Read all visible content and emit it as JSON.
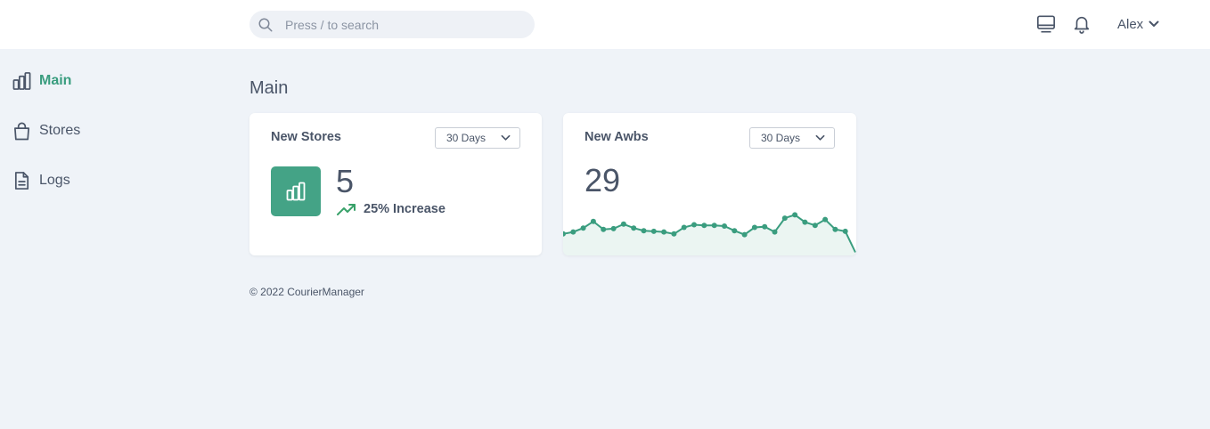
{
  "header": {
    "search_placeholder": "Press / to search",
    "icons": [
      "search-icon",
      "monitor-icon",
      "bell-icon"
    ],
    "user": {
      "name": "Alex"
    }
  },
  "sidebar": {
    "items": [
      {
        "label": "Main",
        "icon": "bar-chart-icon",
        "active": true
      },
      {
        "label": "Stores",
        "icon": "shopping-bag-icon",
        "active": false
      },
      {
        "label": "Logs",
        "icon": "document-icon",
        "active": false
      }
    ]
  },
  "main": {
    "title": "Main",
    "cards": [
      {
        "title": "New Stores",
        "period": "30 Days",
        "value": "5",
        "trend_label": "25% Increase",
        "icon": "bar-chart-icon"
      },
      {
        "title": "New Awbs",
        "period": "30 Days",
        "value": "29"
      }
    ]
  },
  "chart_data": {
    "type": "area",
    "title": "",
    "xlabel": "",
    "ylabel": "",
    "series": [
      {
        "values": [
          1,
          1.3,
          1.9,
          2.9,
          1.7,
          1.8,
          2.5,
          1.9,
          1.5,
          1.4,
          1.3,
          1.0,
          2.0,
          2.4,
          2.3,
          2.3,
          2.2,
          1.5,
          0.9,
          2.0,
          2.1,
          1.3,
          3.4,
          3.9,
          2.8,
          2.3,
          3.2,
          1.7,
          1.4,
          -1.8
        ]
      }
    ],
    "grid": false,
    "legend": "none"
  },
  "footer": {
    "copyright": "© 2022 CourierManager"
  },
  "colors": {
    "accent": "#3a9d7f",
    "tile": "#44a386",
    "background": "#eff3f8",
    "text": "#4a5568",
    "trend": "#38a169"
  }
}
